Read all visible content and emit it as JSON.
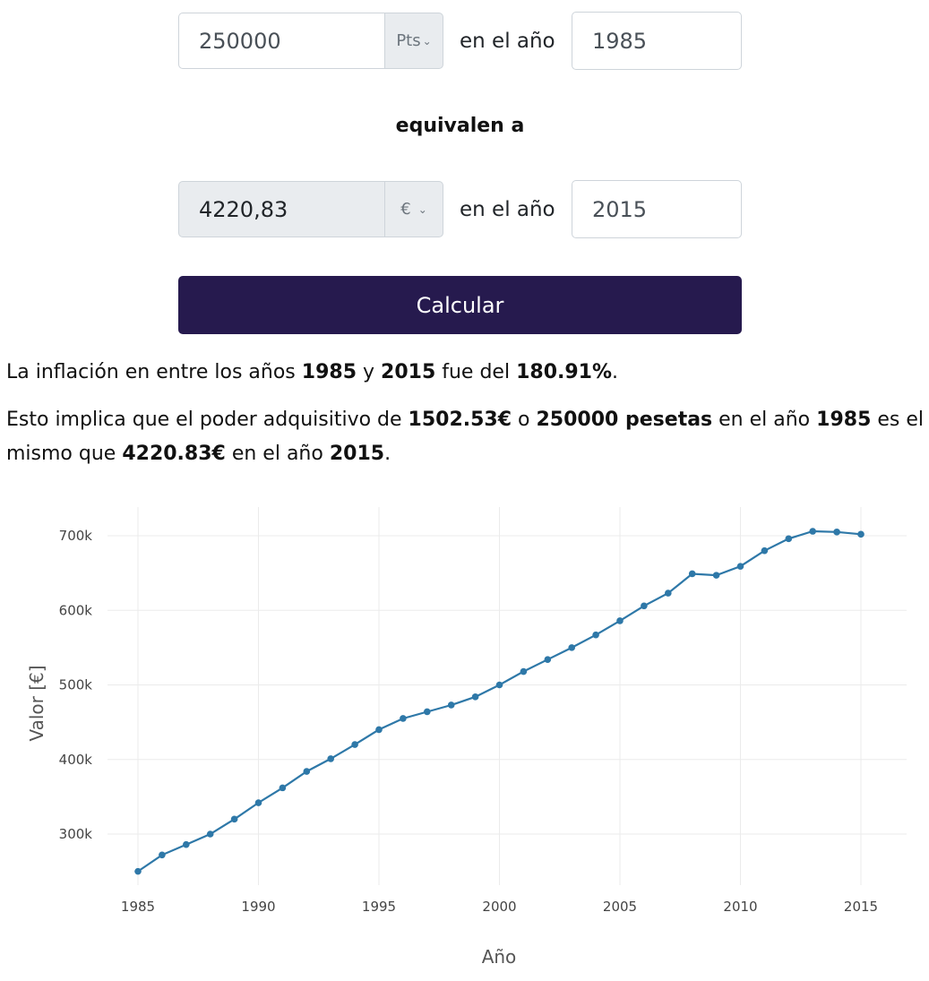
{
  "form": {
    "amount_from": "250000",
    "currency_from": "Pts",
    "year_label_1": "en el año",
    "year_from": "1985",
    "equivalen": "equivalen a",
    "amount_to": "4220,83",
    "currency_to": "€",
    "year_label_2": "en el año",
    "year_to": "2015",
    "calc_button": "Calcular"
  },
  "result": {
    "line1": {
      "t1": "La inflación en entre los años ",
      "y1": "1985",
      "t2": " y ",
      "y2": "2015",
      "t3": " fue del ",
      "pct": "180.91%",
      "t4": "."
    },
    "line2": {
      "t1": "Esto implica que el poder adquisitivo de ",
      "eur1": "1502.53€",
      "t2": " o ",
      "pts": "250000 pesetas",
      "t3": " en el año ",
      "y1": "1985",
      "t4": " es el mismo que ",
      "eur2": "4220.83€",
      "t5": " en el año ",
      "y2": "2015",
      "t6": "."
    }
  },
  "chart_data": {
    "type": "line",
    "title": "",
    "xlabel": "Año",
    "ylabel": "Valor [€]",
    "x": [
      1985,
      1986,
      1987,
      1988,
      1989,
      1990,
      1991,
      1992,
      1993,
      1994,
      1995,
      1996,
      1997,
      1998,
      1999,
      2000,
      2001,
      2002,
      2003,
      2004,
      2005,
      2006,
      2007,
      2008,
      2009,
      2010,
      2011,
      2012,
      2013,
      2014,
      2015
    ],
    "series": [
      {
        "color": "#2e78a8",
        "values": [
          250000,
          272000,
          286000,
          300000,
          320000,
          342000,
          362000,
          384000,
          401000,
          420000,
          440000,
          455000,
          464000,
          473000,
          484000,
          500000,
          518000,
          534000,
          550000,
          567000,
          586000,
          606000,
          623000,
          649000,
          647000,
          659000,
          680000,
          696000,
          706000,
          705000,
          702000
        ]
      }
    ],
    "xlim": [
      1985,
      2015
    ],
    "ylim": [
      250000,
      710000
    ],
    "xticks": [
      "1985",
      "1990",
      "1995",
      "2000",
      "2005",
      "2010",
      "2015"
    ],
    "yticks": [
      "300k",
      "400k",
      "500k",
      "600k",
      "700k"
    ],
    "grid": true
  }
}
